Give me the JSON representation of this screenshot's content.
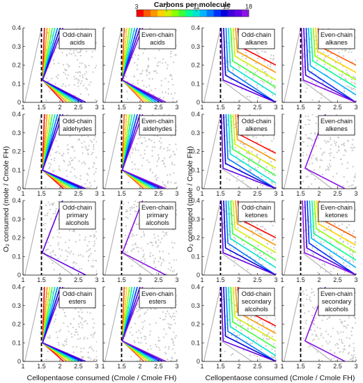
{
  "colorbar": {
    "title": "Carbons per molecule",
    "ticks": [
      "3",
      "7",
      "11",
      "15",
      "18"
    ],
    "min": 3,
    "max": 18,
    "colors": [
      "#ff0000",
      "#ff5a00",
      "#ff9600",
      "#ffd200",
      "#d2f000",
      "#8cff00",
      "#3cff3c",
      "#00ff96",
      "#00e6d2",
      "#00b4ff",
      "#0078ff",
      "#0032ff",
      "#0000dc",
      "#3c00dc",
      "#6400e6",
      "#8c14e6"
    ]
  },
  "xlabel_left": "Cellopentaose consumed (Cmole / Cmole FH)",
  "xlabel_right": "Cellopentaose consumed (Cmole / Cmole FH)",
  "ylabel_left": "O₂ consumed (mole / Cmole FH)",
  "ylabel_right": "O₂ consumed (mole / Cmole FH)",
  "chart_data": {
    "type": "line",
    "grid": false,
    "xlim": [
      1,
      3
    ],
    "ylim": [
      0,
      0.4
    ],
    "xticks": [
      "1",
      "1.5",
      "2",
      "2.5",
      "3"
    ],
    "yticks": [
      "0",
      "0.1",
      "0.2",
      "0.3",
      "0.4"
    ],
    "dashed_vertical_x": 1.5,
    "scatter_color": "#c8c8c8",
    "panels": [
      {
        "label": [
          "Odd-chain",
          "acids"
        ],
        "type": "fan",
        "bx": 1.53,
        "by": 0.12,
        "dx": 0.14,
        "minn": 3,
        "maxn": 17,
        "step": 2
      },
      {
        "label": [
          "Even-chain",
          "acids"
        ],
        "type": "fanlong",
        "bx": 1.52,
        "by": 0.12,
        "dx": 0.14,
        "minn": 4,
        "maxn": 18,
        "step": 2
      },
      {
        "label": [
          "Odd-chain",
          "alkanes"
        ],
        "type": "kink",
        "bx": 1.52,
        "by": 0.12,
        "dx": 0.18,
        "minn": 3,
        "maxn": 17,
        "step": 2
      },
      {
        "label": [
          "Even-chain",
          "alkanes"
        ],
        "type": "kinkeven",
        "bx": 1.52,
        "by": 0.12,
        "dx": 0.14,
        "minn": 4,
        "maxn": 18,
        "step": 2
      },
      {
        "label": [
          "Odd-chain",
          "aldehydes"
        ],
        "type": "fan",
        "bx": 1.53,
        "by": 0.1,
        "dx": 0.16,
        "minn": 3,
        "maxn": 17,
        "step": 2
      },
      {
        "label": [
          "Even-chain",
          "aldehydes"
        ],
        "type": "fan",
        "bx": 1.52,
        "by": 0.1,
        "dx": 0.14,
        "minn": 4,
        "maxn": 18,
        "step": 2
      },
      {
        "label": [
          "Odd-chain",
          "alkenes"
        ],
        "type": "kink",
        "bx": 1.52,
        "by": 0.11,
        "dx": 0.18,
        "minn": 3,
        "maxn": 17,
        "step": 2
      },
      {
        "label": [
          "Even-chain",
          "alkenes"
        ],
        "type": "single",
        "bx": 1.62,
        "by": 0.11,
        "dx": 0.1,
        "minn": 18,
        "maxn": 18,
        "step": 2
      },
      {
        "label": [
          "Odd-chain",
          "primary",
          "alcohols"
        ],
        "type": "single",
        "bx": 1.52,
        "by": 0.12,
        "dx": 0.14,
        "minn": 17,
        "maxn": 17,
        "step": 2
      },
      {
        "label": [
          "Even-chain",
          "primary",
          "alcohols"
        ],
        "type": "fan",
        "bx": 1.52,
        "by": 0.12,
        "dx": 0.14,
        "minn": 18,
        "maxn": 18,
        "step": 2
      },
      {
        "label": [
          "Odd-chain",
          "ketones"
        ],
        "type": "kink",
        "bx": 1.52,
        "by": 0.12,
        "dx": 0.18,
        "minn": 3,
        "maxn": 17,
        "step": 2
      },
      {
        "label": [
          "Even-chain",
          "ketones"
        ],
        "type": "kinkeven",
        "bx": 1.55,
        "by": 0.12,
        "dx": 0.14,
        "minn": 4,
        "maxn": 18,
        "step": 2
      },
      {
        "label": [
          "Odd-chain",
          "esters"
        ],
        "type": "fan",
        "bx": 1.53,
        "by": 0.1,
        "dx": 0.14,
        "minn": 3,
        "maxn": 17,
        "step": 2
      },
      {
        "label": [
          "Even-chain",
          "esters"
        ],
        "type": "fan",
        "bx": 1.52,
        "by": 0.11,
        "dx": 0.14,
        "minn": 4,
        "maxn": 18,
        "step": 2
      },
      {
        "label": [
          "Odd-chain",
          "secondary",
          "alcohols"
        ],
        "type": "kink",
        "bx": 1.52,
        "by": 0.11,
        "dx": 0.18,
        "minn": 3,
        "maxn": 17,
        "step": 2
      },
      {
        "label": [
          "Even-chain",
          "secondary",
          "alcohols"
        ],
        "type": "single",
        "bx": 1.62,
        "by": 0.11,
        "dx": 0.1,
        "minn": 18,
        "maxn": 18,
        "step": 2
      }
    ]
  }
}
